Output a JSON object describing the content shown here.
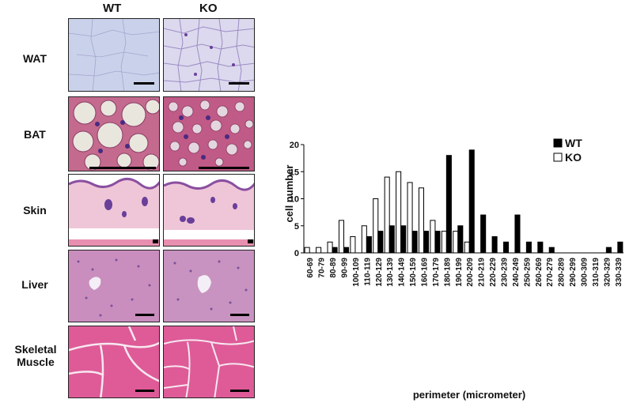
{
  "figure": {
    "columns": [
      "WT",
      "KO"
    ],
    "rows": [
      "WAT",
      "BAT",
      "Skin",
      "Liver",
      "Skeletal Muscle"
    ]
  },
  "chart_data": {
    "type": "bar",
    "ylabel": "cell number",
    "xlabel": "perimeter (micrometer)",
    "ylim": [
      0,
      20
    ],
    "yticks": [
      0,
      5,
      10,
      15,
      20
    ],
    "legend_position": "top-right",
    "categories": [
      "60-69",
      "70-79",
      "80-89",
      "90-99",
      "100-109",
      "110-119",
      "120-129",
      "130-139",
      "140-149",
      "150-159",
      "160-169",
      "170-179",
      "180-189",
      "190-199",
      "200-209",
      "210-219",
      "220-229",
      "230-239",
      "240-249",
      "250-259",
      "260-269",
      "270-279",
      "280-289",
      "290-299",
      "300-309",
      "310-319",
      "320-329",
      "330-339"
    ],
    "series": [
      {
        "name": "WT",
        "color": "#000000",
        "values": [
          0,
          0,
          1,
          1,
          0,
          3,
          4,
          5,
          5,
          4,
          4,
          4,
          18,
          5,
          19,
          7,
          3,
          2,
          7,
          2,
          2,
          1,
          0,
          0,
          0,
          0,
          1,
          2
        ]
      },
      {
        "name": "KO",
        "color": "#ffffff",
        "values": [
          1,
          1,
          2,
          6,
          3,
          5,
          10,
          14,
          15,
          13,
          12,
          6,
          4,
          4,
          2,
          0,
          0,
          0,
          0,
          0,
          0,
          0,
          0,
          0,
          0,
          0,
          0,
          0
        ]
      }
    ]
  }
}
